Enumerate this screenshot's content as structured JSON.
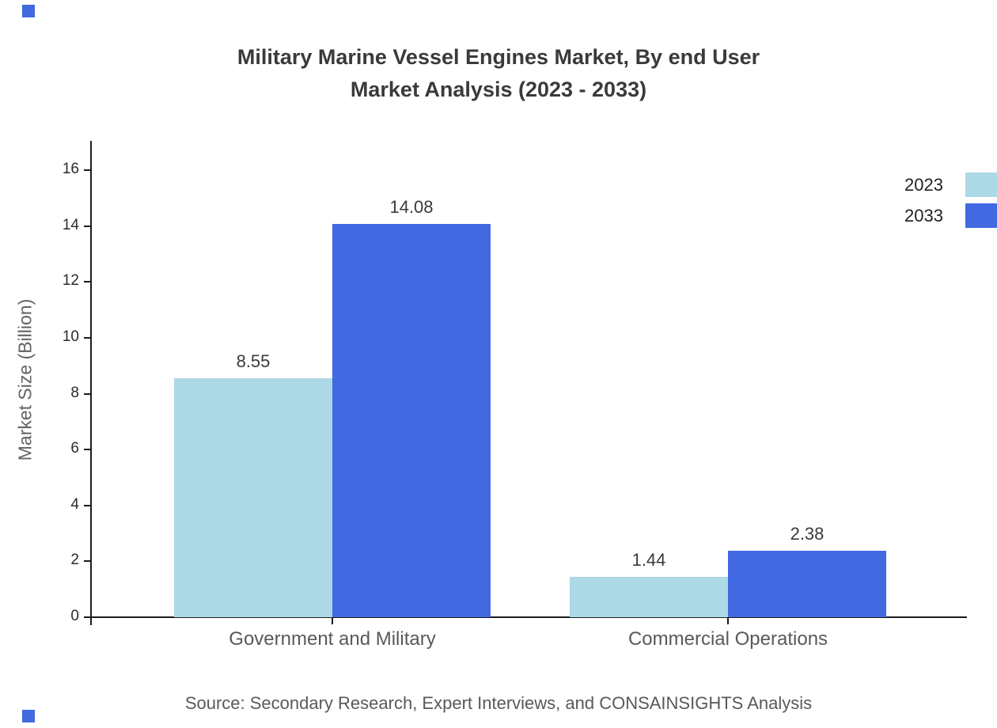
{
  "header": {
    "title_line1": "Military Marine Vessel Engines Market, By end User",
    "title_line2": "Market Analysis (2023 - 2033)"
  },
  "footer": {
    "source": "Source: Secondary Research, Expert Interviews, and CONSAINSIGHTS Analysis"
  },
  "colors": {
    "accent": "#4169E1",
    "series_2023": "#ADD8E6",
    "series_2033": "#4169E1",
    "axis": "#1c1c1c"
  },
  "chart_data": {
    "type": "bar",
    "title": "Military Marine Vessel Engines Market, By end User Market Analysis (2023 - 2033)",
    "categories": [
      "Government and Military",
      "Commercial Operations"
    ],
    "series": [
      {
        "name": "2023",
        "color": "#ADD8E6",
        "values": [
          8.55,
          1.44
        ]
      },
      {
        "name": "2033",
        "color": "#4169E1",
        "values": [
          14.08,
          2.38
        ]
      }
    ],
    "xlabel": "",
    "ylabel": "Market Size (Billion)",
    "ylim": [
      0,
      17
    ],
    "yticks": [
      0,
      2,
      4,
      6,
      8,
      10,
      12,
      14,
      16
    ],
    "grid": false,
    "legend_position": "top-right",
    "value_labels": true
  }
}
